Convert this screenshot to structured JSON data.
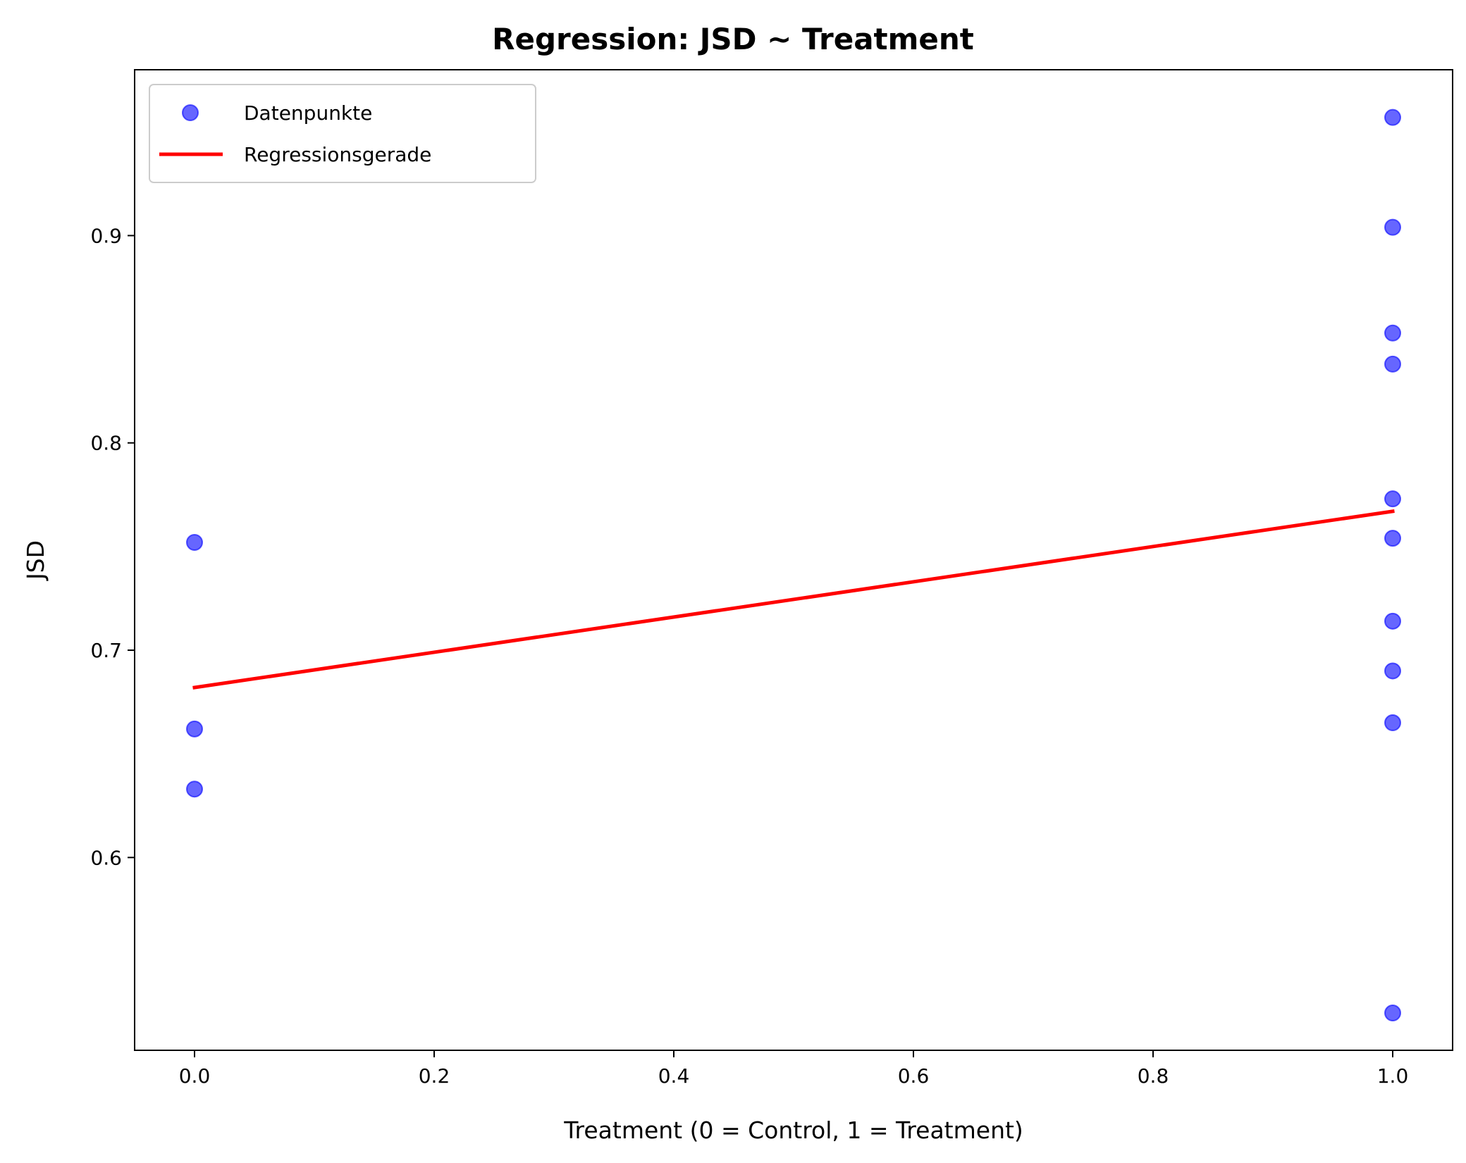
{
  "chart_data": {
    "type": "scatter",
    "title": "Regression: JSD ~ Treatment",
    "xlabel": "Treatment (0 = Control, 1 = Treatment)",
    "ylabel": "JSD",
    "xlim": [
      -0.05,
      1.05
    ],
    "ylim": [
      0.507,
      0.98
    ],
    "xticks": [
      0.0,
      0.2,
      0.4,
      0.6,
      0.8,
      1.0
    ],
    "xtick_labels": [
      "0.0",
      "0.2",
      "0.4",
      "0.6",
      "0.8",
      "1.0"
    ],
    "yticks": [
      0.6,
      0.7,
      0.8,
      0.9
    ],
    "ytick_labels": [
      "0.6",
      "0.7",
      "0.8",
      "0.9"
    ],
    "grid": false,
    "legend_position": "top-left",
    "series": [
      {
        "name": "Datenpunkte",
        "kind": "scatter",
        "color": "#0000ff",
        "opacity": 0.6,
        "points": [
          {
            "x": 0,
            "y": 0.752
          },
          {
            "x": 0,
            "y": 0.662
          },
          {
            "x": 0,
            "y": 0.633
          },
          {
            "x": 1,
            "y": 0.957
          },
          {
            "x": 1,
            "y": 0.904
          },
          {
            "x": 1,
            "y": 0.853
          },
          {
            "x": 1,
            "y": 0.838
          },
          {
            "x": 1,
            "y": 0.773
          },
          {
            "x": 1,
            "y": 0.754
          },
          {
            "x": 1,
            "y": 0.714
          },
          {
            "x": 1,
            "y": 0.69
          },
          {
            "x": 1,
            "y": 0.665
          },
          {
            "x": 1,
            "y": 0.525
          }
        ]
      },
      {
        "name": "Regressionsgerade",
        "kind": "line",
        "color": "#ff0000",
        "points": [
          {
            "x": 0,
            "y": 0.682
          },
          {
            "x": 1,
            "y": 0.767
          }
        ]
      }
    ]
  }
}
